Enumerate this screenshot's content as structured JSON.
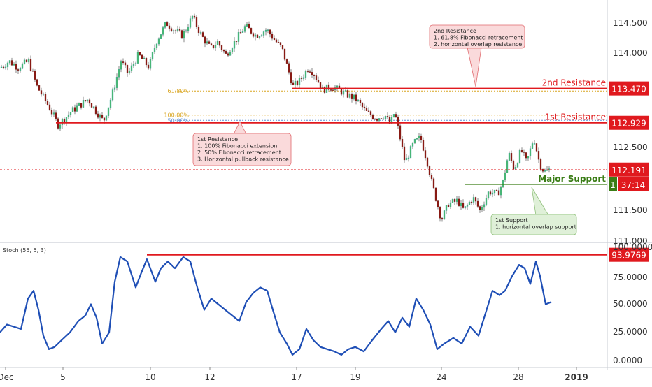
{
  "chart_data": [
    {
      "type": "candlestick",
      "title": "",
      "price_axis": {
        "ylim": [
          111.05,
          114.72
        ],
        "tick_labels": [
          "114.500",
          "114.000",
          "112.500",
          "111.500",
          "111.000"
        ]
      },
      "time_axis": {
        "tick_labels": [
          "Dec",
          "5",
          "10",
          "12",
          "17",
          "19",
          "24",
          "28",
          "2019"
        ]
      },
      "levels": [
        {
          "name": "2nd Resistance",
          "value": 113.47,
          "value_label": "113.470",
          "color": "#e0191e"
        },
        {
          "name": "1st Resistance",
          "value": 112.929,
          "value_label": "112.929",
          "color": "#e0191e"
        },
        {
          "name": "Major Support",
          "value": 111.96,
          "value_label": "37:14",
          "badge_prefix": "1",
          "color": "#3a7d16"
        },
        {
          "name": "current price",
          "value": 112.191,
          "value_label": "112.191",
          "color": "#e0191e"
        }
      ],
      "fibonacci": [
        {
          "label": "61.80%",
          "value": 113.43
        },
        {
          "label": "100.00%",
          "value": 113.05
        },
        {
          "label": "50.00%",
          "value": 113.0
        }
      ],
      "annotations": [
        {
          "name": "second-resistance-note",
          "lines": [
            "2nd Resistance",
            "1. 61.8% Fibonacci retracement",
            "2. horizontal overlap resistance"
          ]
        },
        {
          "name": "first-resistance-note",
          "lines": [
            "1st Resistance",
            "1. 100% Fibonacci extension",
            "2. 50% Fibonacci retracement",
            "3. Horizontal pullback resistance"
          ]
        },
        {
          "name": "first-support-note",
          "lines": [
            "1st Support",
            "1. horizontal overlap support"
          ]
        }
      ],
      "price_path": [
        [
          0,
          113.8
        ],
        [
          12,
          113.9
        ],
        [
          25,
          113.8
        ],
        [
          40,
          113.9
        ],
        [
          52,
          113.5
        ],
        [
          68,
          113.2
        ],
        [
          82,
          112.9
        ],
        [
          92,
          113.0
        ],
        [
          100,
          113.1
        ],
        [
          112,
          113.2
        ],
        [
          125,
          113.3
        ],
        [
          137,
          113.1
        ],
        [
          147,
          112.95
        ],
        [
          160,
          113.4
        ],
        [
          172,
          113.9
        ],
        [
          182,
          113.7
        ],
        [
          197,
          114.0
        ],
        [
          212,
          113.8
        ],
        [
          222,
          114.2
        ],
        [
          237,
          114.5
        ],
        [
          247,
          114.4
        ],
        [
          260,
          114.3
        ],
        [
          274,
          114.6
        ],
        [
          287,
          114.3
        ],
        [
          300,
          114.1
        ],
        [
          310,
          114.2
        ],
        [
          322,
          114.0
        ],
        [
          334,
          114.2
        ],
        [
          350,
          114.45
        ],
        [
          365,
          114.3
        ],
        [
          380,
          114.4
        ],
        [
          394,
          114.2
        ],
        [
          402,
          114.1
        ],
        [
          410,
          113.8
        ],
        [
          418,
          113.5
        ],
        [
          428,
          113.6
        ],
        [
          440,
          113.8
        ],
        [
          448,
          113.7
        ],
        [
          460,
          113.45
        ],
        [
          474,
          113.5
        ],
        [
          490,
          113.4
        ],
        [
          508,
          113.3
        ],
        [
          522,
          113.1
        ],
        [
          537,
          113.0
        ],
        [
          549,
          113.05
        ],
        [
          557,
          112.9
        ],
        [
          563,
          113.1
        ],
        [
          569,
          112.8
        ],
        [
          578,
          112.3
        ],
        [
          590,
          112.6
        ],
        [
          600,
          112.7
        ],
        [
          610,
          112.3
        ],
        [
          616,
          112.0
        ],
        [
          623,
          111.7
        ],
        [
          630,
          111.4
        ],
        [
          640,
          111.65
        ],
        [
          653,
          111.7
        ],
        [
          662,
          111.55
        ],
        [
          675,
          111.75
        ],
        [
          685,
          111.55
        ],
        [
          698,
          111.85
        ],
        [
          710,
          111.8
        ],
        [
          718,
          112.0
        ],
        [
          726,
          112.45
        ],
        [
          734,
          112.2
        ],
        [
          744,
          112.5
        ],
        [
          752,
          112.3
        ],
        [
          762,
          112.7
        ],
        [
          770,
          112.3
        ],
        [
          777,
          112.15
        ],
        [
          786,
          112.2
        ]
      ],
      "stochastic": {
        "name": "Stoch (55, 5, 3)",
        "ylim": [
          0,
          100
        ],
        "tick_labels": [
          "100.0000",
          "75.0000",
          "50.0000",
          "25.0000",
          "0.0000"
        ],
        "level": {
          "value": 93.9769,
          "label": "93.9769",
          "color": "#e0191e"
        },
        "series": [
          [
            0,
            25
          ],
          [
            10,
            32
          ],
          [
            20,
            30
          ],
          [
            30,
            28
          ],
          [
            40,
            55
          ],
          [
            48,
            62
          ],
          [
            55,
            45
          ],
          [
            62,
            22
          ],
          [
            70,
            10
          ],
          [
            78,
            12
          ],
          [
            88,
            18
          ],
          [
            100,
            25
          ],
          [
            112,
            35
          ],
          [
            122,
            40
          ],
          [
            130,
            50
          ],
          [
            138,
            38
          ],
          [
            146,
            15
          ],
          [
            156,
            25
          ],
          [
            164,
            70
          ],
          [
            172,
            92
          ],
          [
            182,
            88
          ],
          [
            194,
            65
          ],
          [
            202,
            78
          ],
          [
            210,
            90
          ],
          [
            222,
            70
          ],
          [
            230,
            82
          ],
          [
            240,
            88
          ],
          [
            250,
            82
          ],
          [
            262,
            92
          ],
          [
            272,
            88
          ],
          [
            282,
            65
          ],
          [
            292,
            45
          ],
          [
            302,
            55
          ],
          [
            312,
            50
          ],
          [
            322,
            45
          ],
          [
            332,
            40
          ],
          [
            342,
            35
          ],
          [
            352,
            52
          ],
          [
            362,
            60
          ],
          [
            372,
            65
          ],
          [
            382,
            62
          ],
          [
            390,
            45
          ],
          [
            400,
            25
          ],
          [
            410,
            15
          ],
          [
            418,
            5
          ],
          [
            428,
            10
          ],
          [
            438,
            28
          ],
          [
            448,
            18
          ],
          [
            458,
            12
          ],
          [
            468,
            10
          ],
          [
            478,
            8
          ],
          [
            488,
            5
          ],
          [
            498,
            10
          ],
          [
            508,
            12
          ],
          [
            520,
            8
          ],
          [
            532,
            18
          ],
          [
            545,
            28
          ],
          [
            555,
            35
          ],
          [
            565,
            25
          ],
          [
            575,
            38
          ],
          [
            585,
            30
          ],
          [
            595,
            55
          ],
          [
            605,
            45
          ],
          [
            615,
            32
          ],
          [
            625,
            10
          ],
          [
            635,
            15
          ],
          [
            648,
            20
          ],
          [
            660,
            15
          ],
          [
            672,
            30
          ],
          [
            684,
            22
          ],
          [
            694,
            42
          ],
          [
            704,
            62
          ],
          [
            714,
            58
          ],
          [
            722,
            62
          ],
          [
            732,
            75
          ],
          [
            742,
            85
          ],
          [
            750,
            82
          ],
          [
            758,
            68
          ],
          [
            766,
            88
          ],
          [
            772,
            75
          ],
          [
            780,
            50
          ],
          [
            788,
            52
          ]
        ]
      }
    }
  ],
  "legend_label": "Stoch (55, 5, 3)"
}
